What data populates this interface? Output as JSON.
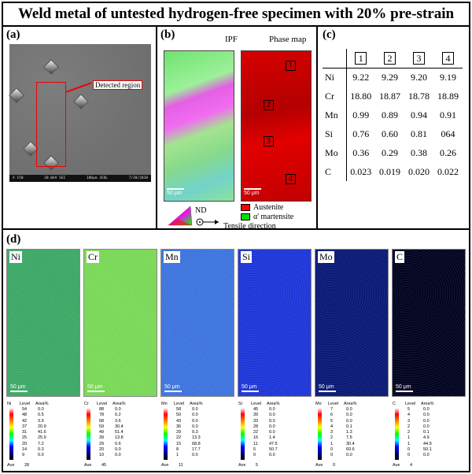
{
  "title": "Weld metal of untested hydrogen-free specimen with 20% pre-strain",
  "panel_a": {
    "label": "(a)",
    "detected_region": "Detected region",
    "sem_info_left": "X 150",
    "sem_info_mid": "20.0kV SEI",
    "sem_info_scale": "100μm JEOL",
    "sem_info_date": "7/30/2018"
  },
  "panel_b": {
    "label": "(b)",
    "ipf_title": "IPF",
    "phase_title": "Phase map",
    "scalebar": "50 μm",
    "regions": [
      "1",
      "2",
      "3",
      "4"
    ],
    "legend_austenite": "Austenite",
    "legend_martensite": "α' martensite",
    "nd_label": "ND",
    "tensile_label": "Tensile direction",
    "colors": {
      "austenite": "#ff0000",
      "martensite": "#00e000"
    }
  },
  "panel_c": {
    "label": "(c)",
    "columns": [
      "1",
      "2",
      "3",
      "4"
    ],
    "rows": [
      {
        "el": "Ni",
        "values": [
          "9.22",
          "9.29",
          "9.20",
          "9.19"
        ]
      },
      {
        "el": "Cr",
        "values": [
          "18.80",
          "18.87",
          "18.78",
          "18.89"
        ]
      },
      {
        "el": "Mn",
        "values": [
          "0.99",
          "0.89",
          "0.94",
          "0.91"
        ]
      },
      {
        "el": "Si",
        "values": [
          "0.76",
          "0.60",
          "0.81",
          "064"
        ]
      },
      {
        "el": "Mo",
        "values": [
          "0.36",
          "0.29",
          "0.38",
          "0.26"
        ]
      },
      {
        "el": "C",
        "values": [
          "0.023",
          "0.019",
          "0.020",
          "0.022"
        ]
      }
    ]
  },
  "panel_d": {
    "label": "(d)",
    "scalebar": "50 μm",
    "head_level": "Level",
    "head_area": "Area%",
    "ave_label": "Ave",
    "maps": [
      {
        "el": "Ni",
        "color": "#3fae6a",
        "ave": "28",
        "levels": [
          "54",
          "48",
          "42",
          "37",
          "31",
          "25",
          "20",
          "14",
          "9"
        ],
        "areas": [
          "0.0",
          "0.5",
          "3.9",
          "20.9",
          "41.6",
          "25.9",
          "7.2",
          "0.3",
          "0.0"
        ]
      },
      {
        "el": "Cr",
        "color": "#7ee05a",
        "ave": "45",
        "levels": [
          "88",
          "78",
          "68",
          "59",
          "49",
          "39",
          "29",
          "20",
          "10"
        ],
        "areas": [
          "0.0",
          "0.2",
          "3.6",
          "30.4",
          "51.4",
          "13.8",
          "0.6",
          "0.0",
          "0.0"
        ]
      },
      {
        "el": "Mn",
        "color": "#3f78e6",
        "ave": "11",
        "levels": [
          "58",
          "50",
          "43",
          "36",
          "29",
          "22",
          "15",
          "8",
          "1"
        ],
        "areas": [
          "0.0",
          "0.0",
          "0.0",
          "0.0",
          "0.3",
          "13.3",
          "68.8",
          "17.7",
          "0.0"
        ]
      },
      {
        "el": "Si",
        "color": "#1f38e0",
        "ave": "5",
        "levels": [
          "45",
          "39",
          "33",
          "28",
          "22",
          "16",
          "11",
          "5",
          "0"
        ],
        "areas": [
          "0.0",
          "0.0",
          "0.0",
          "0.0",
          "0.0",
          "1.4",
          "47.5",
          "50.7",
          "0.0"
        ]
      },
      {
        "el": "Mo",
        "color": "#0a1a7a",
        "ave": "0",
        "levels": [
          "7",
          "6",
          "5",
          "4",
          "3",
          "2",
          "1",
          "0",
          "0"
        ],
        "areas": [
          "0.0",
          "0.0",
          "0.0",
          "0.1",
          "1.3",
          "7.5",
          "30.4",
          "60.6",
          "0.0"
        ]
      },
      {
        "el": "C",
        "color": "#020320",
        "ave": "4",
        "levels": [
          "5",
          "4",
          "3",
          "2",
          "2",
          "1",
          "1",
          "0",
          "0"
        ],
        "areas": [
          "0.0",
          "0.0",
          "0.0",
          "0.0",
          "0.1",
          "4.9",
          "44.9",
          "50.1",
          "0.0"
        ]
      }
    ]
  }
}
